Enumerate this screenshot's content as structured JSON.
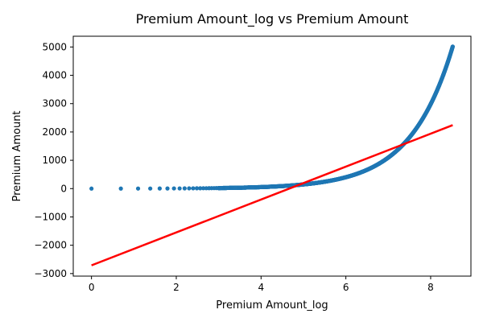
{
  "chart_data": {
    "type": "scatter",
    "title": "Premium Amount_log vs Premium Amount",
    "xlabel": "Premium Amount_log",
    "ylabel": "Premium Amount",
    "xlim": [
      -0.43,
      8.95
    ],
    "ylim": [
      -3090,
      5380
    ],
    "x_ticks": [
      0,
      2,
      4,
      6,
      8
    ],
    "y_ticks": [
      -3000,
      -2000,
      -1000,
      0,
      1000,
      2000,
      3000,
      4000,
      5000
    ],
    "x_tick_labels": [
      "0",
      "2",
      "4",
      "6",
      "8"
    ],
    "y_tick_labels": [
      "−3000",
      "−2000",
      "−1000",
      "0",
      "1000",
      "2000",
      "3000",
      "4000",
      "5000"
    ],
    "grid": false,
    "series": [
      {
        "kind": "scatter",
        "relationship": "y = exp(x) - 1",
        "x": [
          0,
          0.693,
          1.099,
          1.386,
          1.609,
          1.792,
          1.946,
          2.079,
          2.197,
          2.303,
          2.398,
          2.485,
          2.565,
          2.639,
          2.708,
          2.773,
          2.833,
          2.89,
          2.944,
          2.996,
          3.045,
          3.2,
          3.4,
          3.6,
          3.8,
          4.0,
          4.2,
          4.4,
          4.6,
          4.8,
          5.0,
          5.2,
          5.4,
          5.6,
          5.8,
          6.0,
          6.2,
          6.4,
          6.6,
          6.8,
          7.0,
          7.2,
          7.4,
          7.6,
          7.8,
          8.0,
          8.1,
          8.2,
          8.3,
          8.4,
          8.5,
          8.52
        ],
        "y": [
          0,
          1,
          2,
          3,
          4,
          5,
          6,
          7,
          8,
          9,
          10,
          11,
          12,
          13,
          14,
          15,
          16,
          17,
          18,
          19,
          20,
          23.5,
          29,
          35.6,
          43.7,
          53.6,
          65.7,
          80.5,
          98.5,
          120.5,
          147.4,
          180.3,
          220.4,
          269.4,
          329.3,
          402.4,
          491.7,
          600.8,
          734.1,
          896.8,
          1095.6,
          1338.4,
          1635,
          1997.2,
          2439.4,
          2979.9,
          3293.3,
          3639.8,
          4022.7,
          4446.1,
          4913.8,
          5012.5
        ],
        "color": "#1f77b4"
      },
      {
        "kind": "line",
        "x": [
          0,
          8.52
        ],
        "y": [
          -2710,
          2240
        ],
        "color": "#ff0000"
      }
    ]
  }
}
